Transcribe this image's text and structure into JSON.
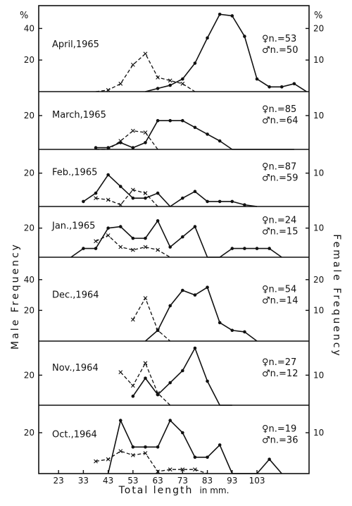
{
  "chart_data": {
    "type": "line",
    "x_ticks": [
      "23",
      "33",
      "43",
      "53",
      "63",
      "73",
      "83",
      "93",
      "103"
    ],
    "x_axis_label": {
      "main": "Total length",
      "unit": "in mm."
    },
    "left_axis_label": "Male Frequency",
    "right_axis_label": "Female Frequency",
    "left_unit": "%",
    "right_unit": "%",
    "line_style": {
      "male": "solid line, filled dots",
      "female": "dashed line, crosses"
    },
    "panels": [
      {
        "month": "April,1965",
        "female_n": "♀n.=53",
        "male_n": "♂n.=50",
        "left_ticks": [
          "40",
          "20"
        ],
        "right_ticks": [
          "20",
          "10"
        ],
        "scale_top": 50,
        "male": [
          [
            58,
            0
          ],
          [
            63,
            2
          ],
          [
            68,
            4
          ],
          [
            73,
            8
          ],
          [
            78,
            18
          ],
          [
            83,
            34
          ],
          [
            88,
            49
          ],
          [
            93,
            48
          ],
          [
            98,
            35
          ],
          [
            103,
            8
          ],
          [
            108,
            3
          ],
          [
            113,
            3
          ],
          [
            118,
            5
          ],
          [
            123,
            0
          ]
        ],
        "female": [
          [
            38,
            0
          ],
          [
            43,
            1
          ],
          [
            48,
            5
          ],
          [
            53,
            17
          ],
          [
            58,
            24
          ],
          [
            63,
            9
          ],
          [
            68,
            7
          ],
          [
            73,
            5
          ],
          [
            78,
            0
          ]
        ]
      },
      {
        "month": "March,1965",
        "female_n": "♀n.=85",
        "male_n": "♂n.=64",
        "left_ticks": [
          "20"
        ],
        "right_ticks": [
          "10"
        ],
        "scale_top": 30,
        "male": [
          [
            38,
            1
          ],
          [
            43,
            1
          ],
          [
            48,
            4
          ],
          [
            53,
            1
          ],
          [
            58,
            4
          ],
          [
            63,
            17
          ],
          [
            68,
            17
          ],
          [
            73,
            17
          ],
          [
            78,
            13
          ],
          [
            83,
            9
          ],
          [
            88,
            5
          ],
          [
            93,
            0
          ],
          [
            98,
            0
          ],
          [
            103,
            0
          ],
          [
            108,
            0
          ],
          [
            113,
            0
          ],
          [
            118,
            0
          ]
        ],
        "female": [
          [
            38,
            0
          ],
          [
            43,
            0
          ],
          [
            48,
            5
          ],
          [
            53,
            11
          ],
          [
            58,
            10
          ],
          [
            63,
            0
          ]
        ]
      },
      {
        "month": "Feb.,1965",
        "female_n": "♀n.=87",
        "male_n": "♂n.=59",
        "left_ticks": [
          "20"
        ],
        "right_ticks": [
          "10"
        ],
        "scale_top": 30,
        "male": [
          [
            33,
            3
          ],
          [
            38,
            8
          ],
          [
            43,
            19
          ],
          [
            48,
            12
          ],
          [
            53,
            5
          ],
          [
            58,
            5
          ],
          [
            63,
            8
          ],
          [
            68,
            0
          ],
          [
            73,
            5
          ],
          [
            78,
            9
          ],
          [
            83,
            3
          ],
          [
            88,
            3
          ],
          [
            93,
            3
          ],
          [
            98,
            1
          ],
          [
            103,
            0
          ]
        ],
        "female": [
          [
            38,
            5
          ],
          [
            43,
            4
          ],
          [
            48,
            1
          ],
          [
            53,
            10
          ],
          [
            58,
            8
          ],
          [
            63,
            0
          ]
        ]
      },
      {
        "month": "Jan.,1965",
        "female_n": "♀n.=24",
        "male_n": "♂n.=15",
        "left_ticks": [
          "20"
        ],
        "right_ticks": [
          "10"
        ],
        "scale_top": 30,
        "male": [
          [
            28,
            0
          ],
          [
            33,
            6
          ],
          [
            38,
            6
          ],
          [
            43,
            20
          ],
          [
            48,
            21
          ],
          [
            53,
            13
          ],
          [
            58,
            13
          ],
          [
            63,
            25
          ],
          [
            68,
            7
          ],
          [
            73,
            14
          ],
          [
            78,
            21
          ],
          [
            83,
            0
          ],
          [
            88,
            0
          ],
          [
            93,
            6
          ],
          [
            98,
            6
          ],
          [
            103,
            6
          ],
          [
            108,
            6
          ],
          [
            113,
            0
          ]
        ],
        "female": [
          [
            38,
            11
          ],
          [
            43,
            15
          ],
          [
            48,
            7
          ],
          [
            53,
            5
          ],
          [
            58,
            7
          ],
          [
            63,
            5
          ],
          [
            68,
            0
          ]
        ]
      },
      {
        "month": "Dec.,1964",
        "female_n": "♀n.=54",
        "male_n": "♂n.=14",
        "left_ticks": [
          "40",
          "20"
        ],
        "right_ticks": [
          "20",
          "10"
        ],
        "scale_top": 50,
        "male": [
          [
            58,
            0
          ],
          [
            63,
            7
          ],
          [
            68,
            23
          ],
          [
            73,
            33
          ],
          [
            78,
            30
          ],
          [
            83,
            35
          ],
          [
            88,
            12
          ],
          [
            93,
            7
          ],
          [
            98,
            6
          ],
          [
            103,
            0
          ]
        ],
        "female": [
          [
            53,
            14
          ],
          [
            58,
            28
          ],
          [
            63,
            7
          ],
          [
            68,
            0
          ]
        ]
      },
      {
        "month": "Nov.,1964",
        "female_n": "♀n.=27",
        "male_n": "♂n.=12",
        "left_ticks": [
          "20"
        ],
        "right_ticks": [
          "10"
        ],
        "scale_top": 38,
        "male": [
          [
            53,
            6
          ],
          [
            58,
            18
          ],
          [
            63,
            7
          ],
          [
            68,
            15
          ],
          [
            73,
            23
          ],
          [
            78,
            38
          ],
          [
            83,
            16
          ],
          [
            88,
            0
          ],
          [
            93,
            0
          ]
        ],
        "female": [
          [
            48,
            22
          ],
          [
            53,
            13
          ],
          [
            58,
            28
          ],
          [
            63,
            8
          ],
          [
            68,
            0
          ]
        ]
      },
      {
        "month": "Oct.,1964",
        "female_n": "♀n.=19",
        "male_n": "♂n.=36",
        "left_ticks": [
          "20"
        ],
        "right_ticks": [
          "10"
        ],
        "scale_top": 30,
        "male": [
          [
            43,
            0
          ],
          [
            48,
            26
          ],
          [
            53,
            13
          ],
          [
            58,
            13
          ],
          [
            63,
            13
          ],
          [
            68,
            26
          ],
          [
            73,
            20
          ],
          [
            78,
            8
          ],
          [
            83,
            8
          ],
          [
            88,
            14
          ],
          [
            93,
            0
          ],
          [
            98,
            0
          ],
          [
            103,
            0
          ],
          [
            108,
            7
          ],
          [
            113,
            0
          ]
        ],
        "female": [
          [
            38,
            6
          ],
          [
            43,
            7
          ],
          [
            48,
            11
          ],
          [
            53,
            9
          ],
          [
            58,
            10
          ],
          [
            63,
            1
          ],
          [
            68,
            2
          ],
          [
            73,
            2
          ],
          [
            78,
            2
          ],
          [
            83,
            0
          ]
        ]
      }
    ]
  }
}
